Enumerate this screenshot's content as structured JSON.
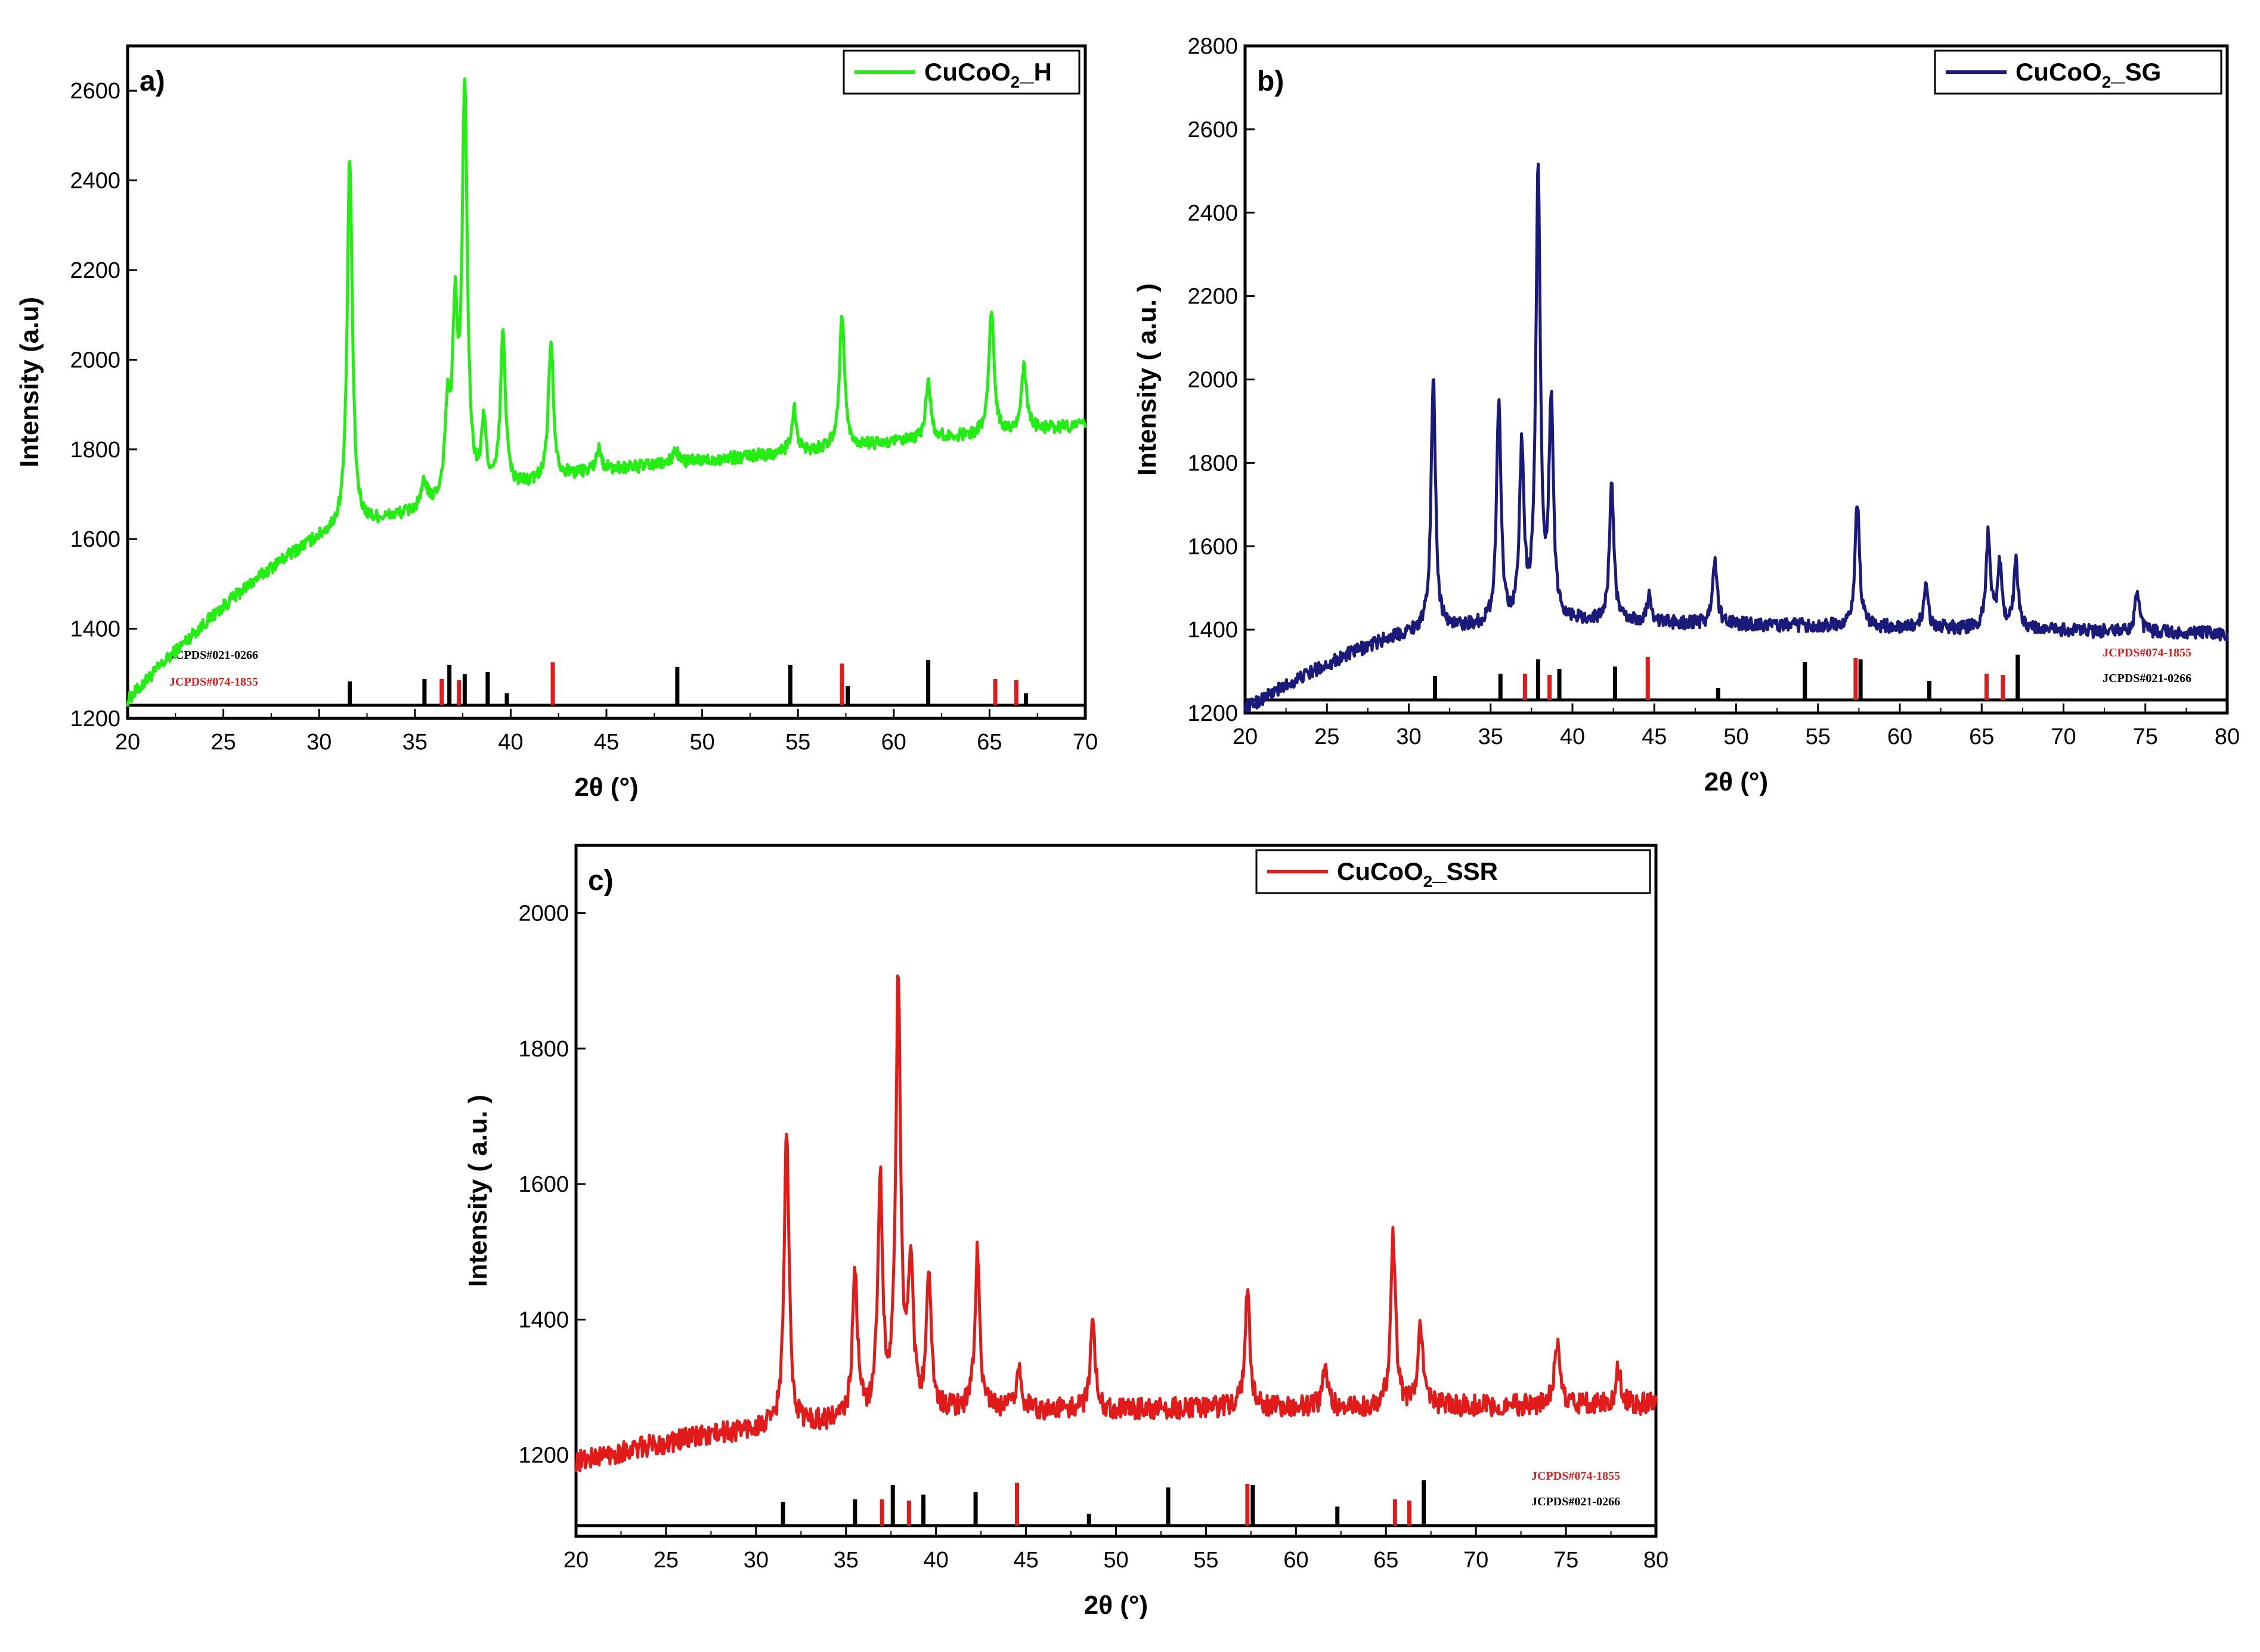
{
  "chart_data": [
    {
      "type": "line",
      "panel_label": "a)",
      "xlabel": "2θ (°)",
      "ylabel": "Intensity (a.u)",
      "xlim": [
        20,
        70
      ],
      "ylim": [
        1200,
        2700
      ],
      "xticks": [
        20,
        25,
        30,
        35,
        40,
        45,
        50,
        55,
        60,
        65,
        70
      ],
      "yticks": [
        1200,
        1400,
        1600,
        1800,
        2000,
        2200,
        2400,
        2600
      ],
      "legend": {
        "placement": "top-right",
        "name": "CuCoO",
        "sub": "2",
        "suffix": "_H"
      },
      "ref_labels": {
        "black": "JCPDS#021-0266",
        "red": "JCPDS#074-1855"
      },
      "ref_label_side": "left",
      "color": "#22ee11",
      "baseline": {
        "start": 1240,
        "knee_x": 31.2,
        "knee_y": 1620,
        "plateau_x": 44,
        "plateau_y": 1750,
        "end": 1855
      },
      "noise": 14,
      "peaks": [
        {
          "x": 31.6,
          "y": 2450
        },
        {
          "x": 35.5,
          "y": 1720
        },
        {
          "x": 36.7,
          "y": 1860
        },
        {
          "x": 37.1,
          "y": 2060
        },
        {
          "x": 37.6,
          "y": 2590
        },
        {
          "x": 38.6,
          "y": 1840
        },
        {
          "x": 39.6,
          "y": 2050
        },
        {
          "x": 42.1,
          "y": 2040
        },
        {
          "x": 44.6,
          "y": 1800
        },
        {
          "x": 48.6,
          "y": 1800
        },
        {
          "x": 54.8,
          "y": 1890
        },
        {
          "x": 57.3,
          "y": 2100
        },
        {
          "x": 61.8,
          "y": 1950
        },
        {
          "x": 65.1,
          "y": 2110
        },
        {
          "x": 66.8,
          "y": 1980
        }
      ],
      "black_sticks": [
        31.6,
        35.5,
        36.8,
        37.6,
        38.8,
        39.8,
        48.7,
        54.6,
        57.6,
        61.8,
        66.9
      ],
      "red_sticks": [
        36.4,
        37.3,
        42.2,
        57.3,
        65.3,
        66.4
      ]
    },
    {
      "type": "line",
      "panel_label": "b)",
      "xlabel": "2θ (°)",
      "ylabel": "Intensity ( a.u. )",
      "xlim": [
        20,
        80
      ],
      "ylim": [
        1200,
        2800
      ],
      "xticks": [
        20,
        25,
        30,
        35,
        40,
        45,
        50,
        55,
        60,
        65,
        70,
        75,
        80
      ],
      "yticks": [
        1200,
        1400,
        1600,
        1800,
        2000,
        2200,
        2400,
        2600,
        2800
      ],
      "legend": {
        "placement": "top-right",
        "name": "CuCoO",
        "sub": "2",
        "suffix": "_SG"
      },
      "ref_labels": {
        "black": "JCPDS#021-0266",
        "red": "JCPDS#074-1855"
      },
      "ref_label_side": "right",
      "color": "#1a1a7a",
      "baseline": {
        "start": 1210,
        "knee_x": 31,
        "knee_y": 1400,
        "plateau_x": 40,
        "plateau_y": 1420,
        "end": 1390
      },
      "noise": 16,
      "peaks": [
        {
          "x": 31.5,
          "y": 2010
        },
        {
          "x": 35.5,
          "y": 1950
        },
        {
          "x": 36.9,
          "y": 1820
        },
        {
          "x": 37.9,
          "y": 2500
        },
        {
          "x": 38.7,
          "y": 1930
        },
        {
          "x": 42.4,
          "y": 1750
        },
        {
          "x": 44.7,
          "y": 1480
        },
        {
          "x": 48.7,
          "y": 1570
        },
        {
          "x": 57.4,
          "y": 1710
        },
        {
          "x": 61.6,
          "y": 1510
        },
        {
          "x": 65.4,
          "y": 1630
        },
        {
          "x": 66.1,
          "y": 1550
        },
        {
          "x": 67.1,
          "y": 1560
        },
        {
          "x": 74.5,
          "y": 1490
        }
      ],
      "black_sticks": [
        31.6,
        35.6,
        37.9,
        39.2,
        42.6,
        48.9,
        54.2,
        57.6,
        61.8,
        67.2
      ],
      "red_sticks": [
        37.1,
        38.6,
        44.6,
        57.3,
        65.3,
        66.3
      ]
    },
    {
      "type": "line",
      "panel_label": "c)",
      "xlabel": "2θ (°)",
      "ylabel": "Intensity ( a.u. )",
      "xlim": [
        20,
        80
      ],
      "ylim": [
        1080,
        2100
      ],
      "xticks": [
        20,
        25,
        30,
        35,
        40,
        45,
        50,
        55,
        60,
        65,
        70,
        75,
        80
      ],
      "yticks": [
        1200,
        1400,
        1600,
        1800,
        2000
      ],
      "legend": {
        "placement": "top-right",
        "name": "CuCoO",
        "sub": "2",
        "suffix": "_SSR"
      },
      "ref_labels": {
        "black": "JCPDS#021-0266",
        "red": "JCPDS#074-1855"
      },
      "ref_label_side": "right",
      "color": "#e11a1a",
      "baseline": {
        "start": 1190,
        "knee_x": 31,
        "knee_y": 1240,
        "plateau_x": 40,
        "plateau_y": 1265,
        "end": 1275
      },
      "noise": 16,
      "peaks": [
        {
          "x": 31.7,
          "y": 1680
        },
        {
          "x": 35.5,
          "y": 1470
        },
        {
          "x": 36.9,
          "y": 1600
        },
        {
          "x": 37.9,
          "y": 1890
        },
        {
          "x": 38.6,
          "y": 1480
        },
        {
          "x": 39.6,
          "y": 1450
        },
        {
          "x": 42.3,
          "y": 1500
        },
        {
          "x": 44.6,
          "y": 1330
        },
        {
          "x": 48.7,
          "y": 1400
        },
        {
          "x": 57.3,
          "y": 1450
        },
        {
          "x": 61.6,
          "y": 1330
        },
        {
          "x": 65.4,
          "y": 1520
        },
        {
          "x": 66.9,
          "y": 1400
        },
        {
          "x": 74.5,
          "y": 1370
        },
        {
          "x": 77.9,
          "y": 1330
        }
      ],
      "black_sticks": [
        31.5,
        35.5,
        37.6,
        39.3,
        42.2,
        48.5,
        52.9,
        57.6,
        62.3,
        67.1
      ],
      "red_sticks": [
        37.0,
        38.5,
        44.5,
        57.3,
        65.5,
        66.3
      ]
    }
  ]
}
